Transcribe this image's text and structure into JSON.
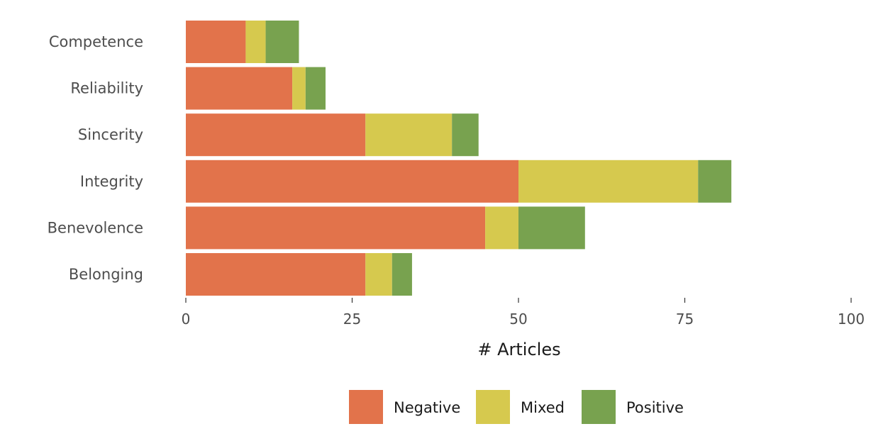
{
  "chart_data": {
    "type": "bar",
    "orientation": "horizontal",
    "stacked": true,
    "categories": [
      "Competence",
      "Reliability",
      "Sincerity",
      "Integrity",
      "Benevolence",
      "Belonging"
    ],
    "series": [
      {
        "name": "Negative",
        "color": "#E2734B",
        "values": [
          9,
          16,
          27,
          50,
          45,
          27
        ]
      },
      {
        "name": "Mixed",
        "color": "#D6C94E",
        "values": [
          3,
          2,
          13,
          27,
          5,
          4
        ]
      },
      {
        "name": "Positive",
        "color": "#78A24F",
        "values": [
          5,
          3,
          4,
          5,
          10,
          3
        ]
      }
    ],
    "xlabel": "# Articles",
    "ylabel": "",
    "xlim": [
      0,
      100
    ],
    "xticks": [
      0,
      25,
      50,
      75,
      100
    ],
    "xtick_labels": [
      "0",
      "25",
      "50",
      "75",
      "100"
    ],
    "grid": false,
    "legend_position": "bottom"
  }
}
